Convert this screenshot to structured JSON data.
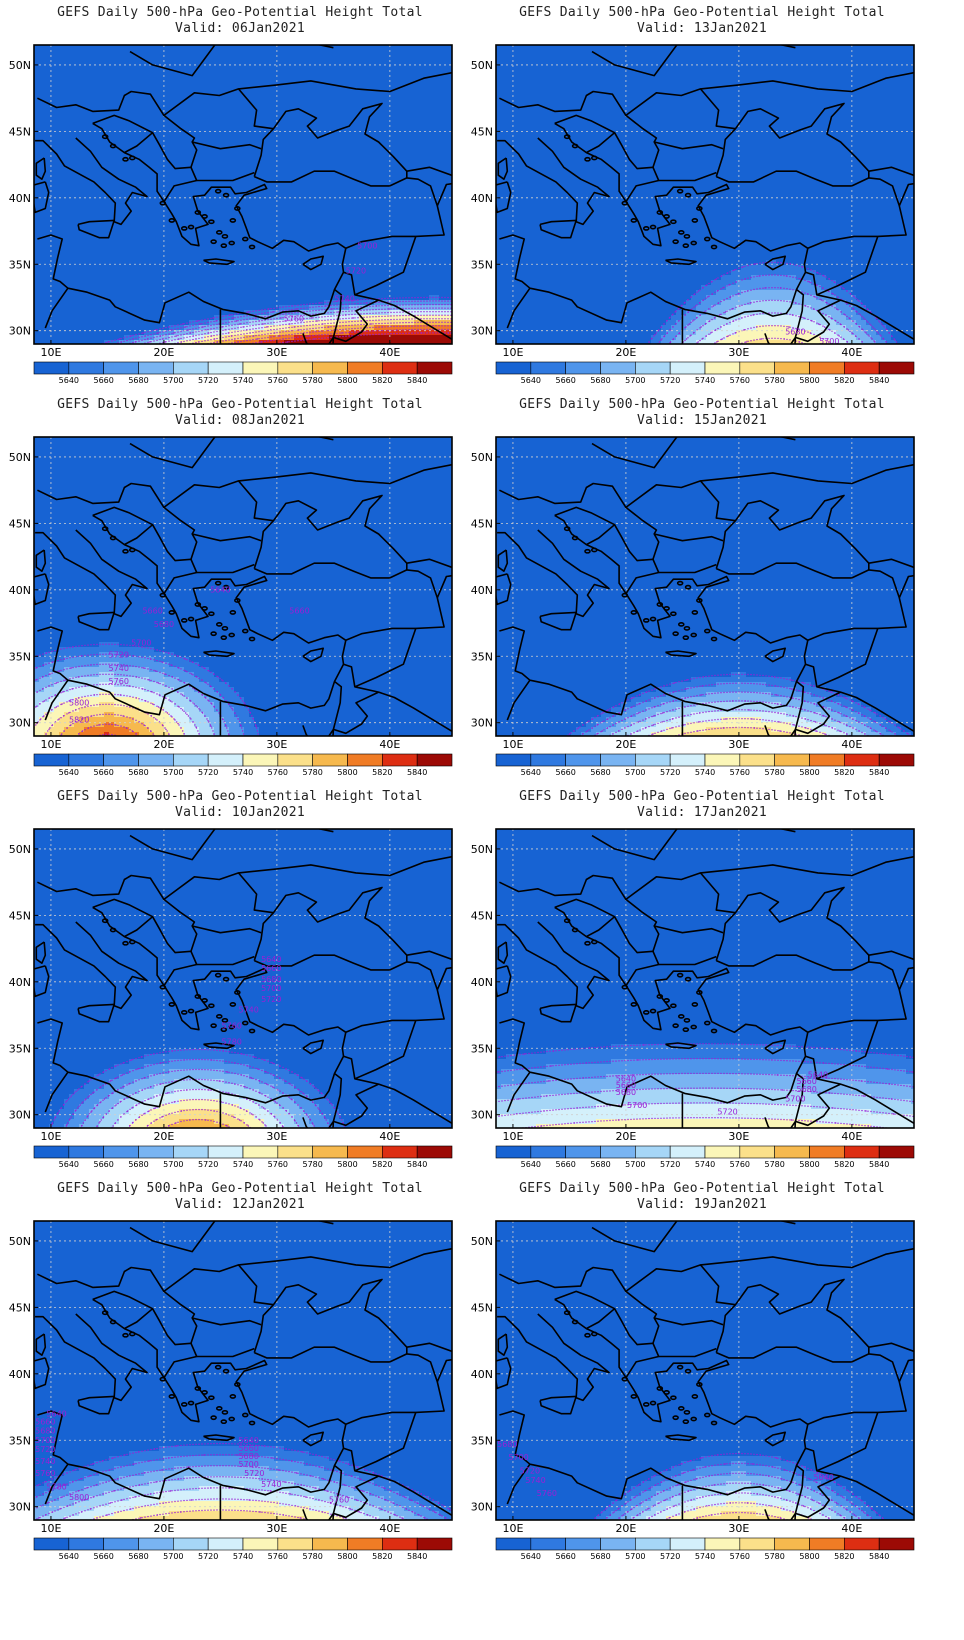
{
  "title_line1": "GEFS Daily 500-hPa Geo-Potential Height Total",
  "axes": {
    "lat_labels": [
      "50N",
      "45N",
      "40N",
      "35N",
      "30N"
    ],
    "lon_labels": [
      "10E",
      "20E",
      "30E",
      "40E"
    ],
    "lat_values": [
      50,
      45,
      40,
      35,
      30
    ],
    "lon_values": [
      10,
      20,
      30,
      40
    ],
    "lat_range": [
      29,
      51.5
    ],
    "lon_range": [
      8.5,
      45.5
    ]
  },
  "colorbar": {
    "levels": [
      "5640",
      "5660",
      "5680",
      "5700",
      "5720",
      "5740",
      "5760",
      "5780",
      "5800",
      "5820",
      "5840"
    ],
    "colors": [
      "#1763d3",
      "#2f79e0",
      "#4f95eb",
      "#79b4f2",
      "#a6d6f7",
      "#d4f0fb",
      "#fbf6b8",
      "#fbe08a",
      "#f6b94e",
      "#f07c25",
      "#dd2e12",
      "#9c0a05"
    ]
  },
  "palette": {
    "contour": "#9a1fd6",
    "land_line": "#000000",
    "grid": "#d0d0d0"
  },
  "panels": [
    {
      "valid": "Valid: 06Jan2021",
      "contour_labels": [
        {
          "text": "5700",
          "lat": 36.2,
          "lon": 38.0
        },
        {
          "text": "5720",
          "lat": 34.3,
          "lon": 37.0
        },
        {
          "text": "5740",
          "lat": 32.2,
          "lon": 36.0
        },
        {
          "text": "5760",
          "lat": 30.7,
          "lon": 31.5
        }
      ],
      "field": {
        "cx": 29,
        "cy": 15,
        "slope_lat": 1.25,
        "tilt": 0.12,
        "bend": 0.004
      }
    },
    {
      "valid": "Valid: 13Jan2021",
      "contour_labels": [
        {
          "text": "5680",
          "lat": 29.7,
          "lon": 35.0
        },
        {
          "text": "5700",
          "lat": 29.0,
          "lon": 38.0
        }
      ],
      "field": {
        "cx": 33,
        "cy": -20,
        "slope_lat": 0.35,
        "tilt": 0.0,
        "bend": 0.05
      }
    },
    {
      "valid": "Valid: 08Jan2021",
      "contour_labels": [
        {
          "text": "5640",
          "lat": 39.8,
          "lon": 25.0
        },
        {
          "text": "5660",
          "lat": 38.2,
          "lon": 32.0
        },
        {
          "text": "5660",
          "lat": 38.2,
          "lon": 19.0
        },
        {
          "text": "5680",
          "lat": 37.2,
          "lon": 20.0
        },
        {
          "text": "5700",
          "lat": 35.8,
          "lon": 18.0
        },
        {
          "text": "5720",
          "lat": 34.9,
          "lon": 16.0
        },
        {
          "text": "5740",
          "lat": 33.9,
          "lon": 16.0
        },
        {
          "text": "5760",
          "lat": 32.9,
          "lon": 16.0
        },
        {
          "text": "5800",
          "lat": 31.3,
          "lon": 12.5
        },
        {
          "text": "5820",
          "lat": 30.0,
          "lon": 12.5
        }
      ],
      "field": {
        "cx": 15,
        "cy": 28,
        "slope_lat": 1.0,
        "tilt": 0.0,
        "bend": 0.0
      }
    },
    {
      "valid": "Valid: 15Jan2021",
      "contour_labels": [],
      "field": {
        "cx": 30,
        "cy": -18,
        "slope_lat": 0.5,
        "tilt": 0.0,
        "bend": 0.02
      }
    },
    {
      "valid": "Valid: 10Jan2021",
      "contour_labels": [
        {
          "text": "5640",
          "lat": 41.5,
          "lon": 29.5
        },
        {
          "text": "5660",
          "lat": 40.8,
          "lon": 29.5
        },
        {
          "text": "5680",
          "lat": 40.0,
          "lon": 29.5
        },
        {
          "text": "5700",
          "lat": 39.3,
          "lon": 29.5
        },
        {
          "text": "5720",
          "lat": 38.5,
          "lon": 29.5
        },
        {
          "text": "5740",
          "lat": 37.7,
          "lon": 27.5
        },
        {
          "text": "5760",
          "lat": 36.5,
          "lon": 26.0
        },
        {
          "text": "5780",
          "lat": 35.3,
          "lon": 26.0
        }
      ],
      "field": {
        "cx": 23,
        "cy": 27,
        "slope_lat": 1.0,
        "tilt": 0.0,
        "bend": 0.0
      }
    },
    {
      "valid": "Valid: 17Jan2021",
      "contour_labels": [
        {
          "text": "5640",
          "lat": 32.5,
          "lon": 20.0
        },
        {
          "text": "5660",
          "lat": 32.0,
          "lon": 20.0
        },
        {
          "text": "5680",
          "lat": 31.5,
          "lon": 20.0
        },
        {
          "text": "5700",
          "lat": 30.5,
          "lon": 21.0
        },
        {
          "text": "5720",
          "lat": 30.0,
          "lon": 29.0
        },
        {
          "text": "5640",
          "lat": 32.8,
          "lon": 37.0
        },
        {
          "text": "5660",
          "lat": 32.3,
          "lon": 36.0
        },
        {
          "text": "5680",
          "lat": 31.7,
          "lon": 36.0
        },
        {
          "text": "5700",
          "lat": 31.0,
          "lon": 35.0
        }
      ],
      "field": {
        "cx": 27,
        "cy": -40,
        "slope_lat": 0.3,
        "tilt": 0.0,
        "bend": 0.003
      }
    },
    {
      "valid": "Valid: 12Jan2021",
      "contour_labels": [
        {
          "text": "5640",
          "lat": 36.8,
          "lon": 10.5
        },
        {
          "text": "5660",
          "lat": 36.2,
          "lon": 9.5
        },
        {
          "text": "5680",
          "lat": 35.5,
          "lon": 9.5
        },
        {
          "text": "5700",
          "lat": 34.8,
          "lon": 9.5
        },
        {
          "text": "5720",
          "lat": 34.1,
          "lon": 9.5
        },
        {
          "text": "5740",
          "lat": 33.2,
          "lon": 9.5
        },
        {
          "text": "5760",
          "lat": 32.3,
          "lon": 9.5
        },
        {
          "text": "5780",
          "lat": 31.3,
          "lon": 10.5
        },
        {
          "text": "5800",
          "lat": 30.5,
          "lon": 12.5
        },
        {
          "text": "5640",
          "lat": 34.8,
          "lon": 27.5
        },
        {
          "text": "5660",
          "lat": 34.2,
          "lon": 27.5
        },
        {
          "text": "5680",
          "lat": 33.6,
          "lon": 27.5
        },
        {
          "text": "5700",
          "lat": 33.0,
          "lon": 27.5
        },
        {
          "text": "5720",
          "lat": 32.3,
          "lon": 28.0
        },
        {
          "text": "5740",
          "lat": 31.5,
          "lon": 29.5
        },
        {
          "text": "5760",
          "lat": 30.3,
          "lon": 35.5
        }
      ],
      "field": {
        "cx": 25,
        "cy": -10,
        "slope_lat": 0.4,
        "tilt": 0.0,
        "bend": 0.012
      }
    },
    {
      "valid": "Valid: 19Jan2021",
      "contour_labels": [
        {
          "text": "5680",
          "lat": 34.5,
          "lon": 9.5
        },
        {
          "text": "5700",
          "lat": 33.5,
          "lon": 10.5
        },
        {
          "text": "5720",
          "lat": 32.5,
          "lon": 11.5
        },
        {
          "text": "5740",
          "lat": 31.8,
          "lon": 12.0
        },
        {
          "text": "5760",
          "lat": 30.8,
          "lon": 13.0
        },
        {
          "text": "5640",
          "lat": 32.0,
          "lon": 37.5
        }
      ],
      "field": {
        "cx": 30,
        "cy": -20,
        "slope_lat": 0.45,
        "tilt": 0.0,
        "bend": 0.03
      }
    }
  ]
}
